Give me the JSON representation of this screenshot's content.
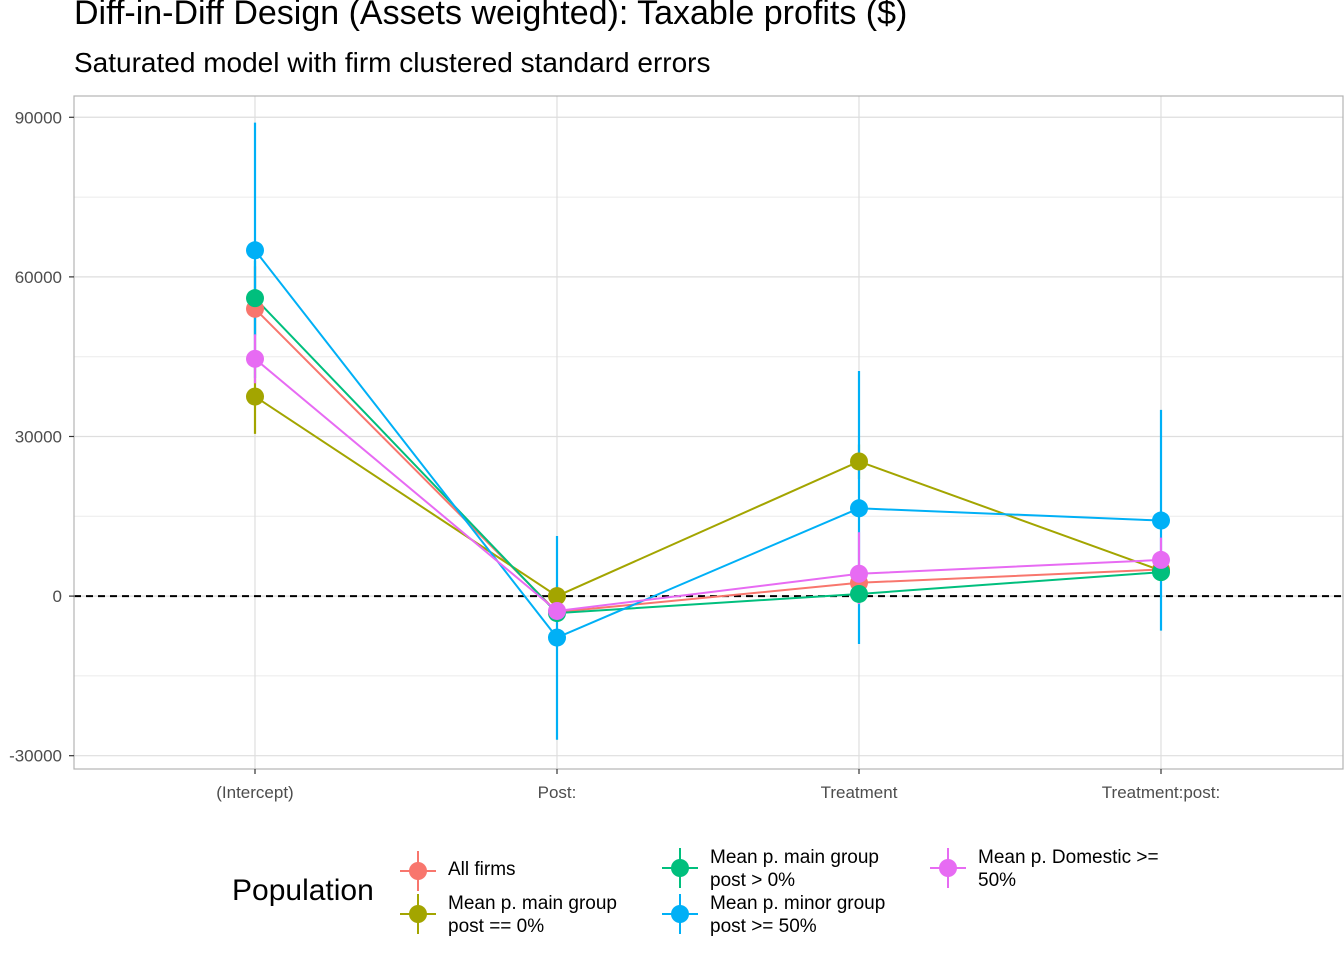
{
  "title": "Diff-in-Diff Design (Assets weighted): Taxable profits  ($)",
  "subtitle": "Saturated model with firm clustered standard errors",
  "legend": {
    "title": "Population",
    "items": [
      {
        "label": "All firms",
        "color": "#F8766D"
      },
      {
        "label": "Mean p. main group\npost == 0%",
        "color": "#A3A500"
      },
      {
        "label": "Mean p. main group\npost > 0%",
        "color": "#00BF7D"
      },
      {
        "label": "Mean p. minor group\npost >= 50%",
        "color": "#00B0F6"
      },
      {
        "label": "Mean p. Domestic >=\n50%",
        "color": "#E76BF3"
      }
    ]
  },
  "chart_data": {
    "type": "line",
    "categories": [
      "(Intercept)",
      "Post:",
      "Treatment",
      "Treatment:post:"
    ],
    "ylim": [
      -32500,
      94000
    ],
    "yticks": [
      -30000,
      0,
      30000,
      60000,
      90000
    ],
    "ytick_labels": [
      "-30000",
      "0",
      "30000",
      "60000",
      "90000"
    ],
    "reference_line_y": 0,
    "grid": true,
    "legend_position": "bottom",
    "series": [
      {
        "name": "All firms",
        "color": "#F8766D",
        "values": [
          54000,
          -3000,
          2500,
          5000
        ],
        "lower": [
          46000,
          -4500,
          300,
          3500
        ],
        "upper": [
          62000,
          -1500,
          4700,
          6500
        ]
      },
      {
        "name": "Mean p. main group\npost == 0%",
        "color": "#A3A500",
        "values": [
          37500,
          0,
          25300,
          4800
        ],
        "lower": [
          30500,
          -2000,
          22000,
          3000
        ],
        "upper": [
          44500,
          2000,
          28500,
          6500
        ]
      },
      {
        "name": "Mean p. main group\npost > 0%",
        "color": "#00BF7D",
        "values": [
          56000,
          -3200,
          400,
          4500
        ],
        "lower": [
          49000,
          -4800,
          -1500,
          3000
        ],
        "upper": [
          63000,
          -1500,
          2300,
          6000
        ]
      },
      {
        "name": "Mean p. minor group\npost >= 50%",
        "color": "#00B0F6",
        "values": [
          65000,
          -7800,
          16500,
          14200
        ],
        "lower": [
          41000,
          -27000,
          -9000,
          -6500
        ],
        "upper": [
          89000,
          11300,
          42300,
          35000
        ]
      },
      {
        "name": "Mean p. Domestic >=\n50%",
        "color": "#E76BF3",
        "values": [
          44600,
          -2800,
          4200,
          6800
        ],
        "lower": [
          40000,
          -4500,
          -1500,
          3000
        ],
        "upper": [
          49200,
          -1000,
          12000,
          11000
        ]
      }
    ]
  }
}
